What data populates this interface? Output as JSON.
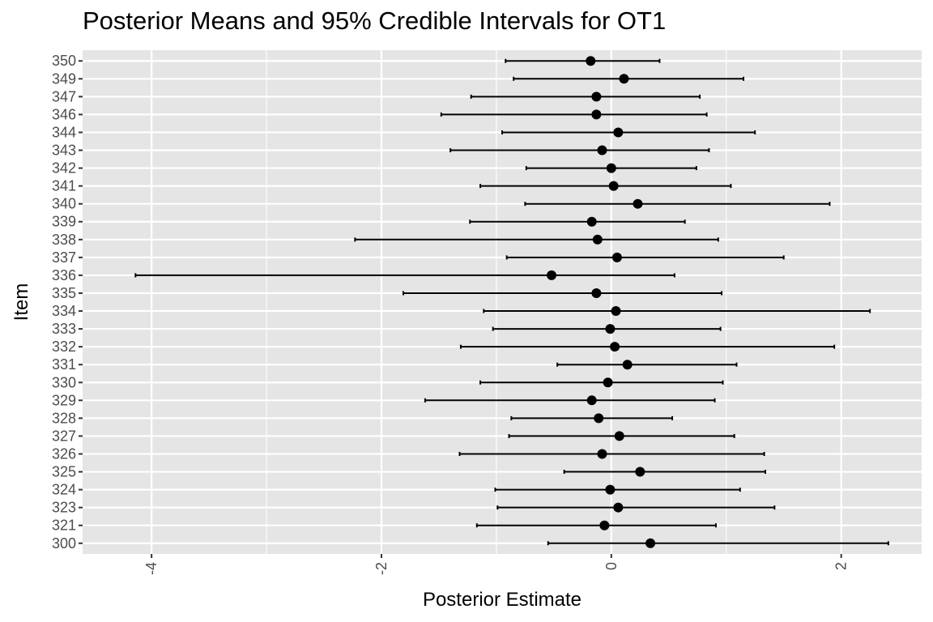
{
  "chart_data": {
    "type": "scatter",
    "subtype": "pointrange",
    "title": "Posterior Means and 95% Credible Intervals for OT1",
    "xlabel": "Posterior Estimate",
    "ylabel": "Item",
    "xlim": [
      -4.6,
      2.7
    ],
    "xticks": [
      -4,
      -2,
      0,
      2
    ],
    "grid": true,
    "background": "#e5e5e5",
    "grid_color": "#ffffff",
    "point_color": "#000000",
    "categories": [
      "300",
      "321",
      "323",
      "324",
      "325",
      "326",
      "327",
      "328",
      "329",
      "330",
      "331",
      "332",
      "333",
      "334",
      "335",
      "336",
      "337",
      "338",
      "339",
      "340",
      "341",
      "342",
      "343",
      "344",
      "346",
      "347",
      "349",
      "350"
    ],
    "mean": [
      0.34,
      -0.06,
      0.06,
      -0.01,
      0.25,
      -0.08,
      0.07,
      -0.11,
      -0.17,
      -0.03,
      0.14,
      0.03,
      -0.01,
      0.04,
      -0.13,
      -0.52,
      0.05,
      -0.12,
      -0.17,
      0.23,
      0.02,
      0.0,
      -0.08,
      0.06,
      -0.13,
      -0.13,
      0.11,
      -0.18
    ],
    "lower": [
      -0.55,
      -1.17,
      -0.99,
      -1.01,
      -0.41,
      -1.32,
      -0.89,
      -0.87,
      -1.62,
      -1.14,
      -0.47,
      -1.31,
      -1.03,
      -1.11,
      -1.81,
      -4.14,
      -0.91,
      -2.23,
      -1.23,
      -0.75,
      -1.14,
      -0.74,
      -1.4,
      -0.95,
      -1.48,
      -1.22,
      -0.85,
      -0.92
    ],
    "upper": [
      2.41,
      0.91,
      1.42,
      1.12,
      1.34,
      1.33,
      1.07,
      0.53,
      0.9,
      0.97,
      1.09,
      1.94,
      0.95,
      2.25,
      0.96,
      0.55,
      1.5,
      0.93,
      0.64,
      1.9,
      1.04,
      0.74,
      0.85,
      1.25,
      0.83,
      0.77,
      1.15,
      0.42
    ]
  }
}
